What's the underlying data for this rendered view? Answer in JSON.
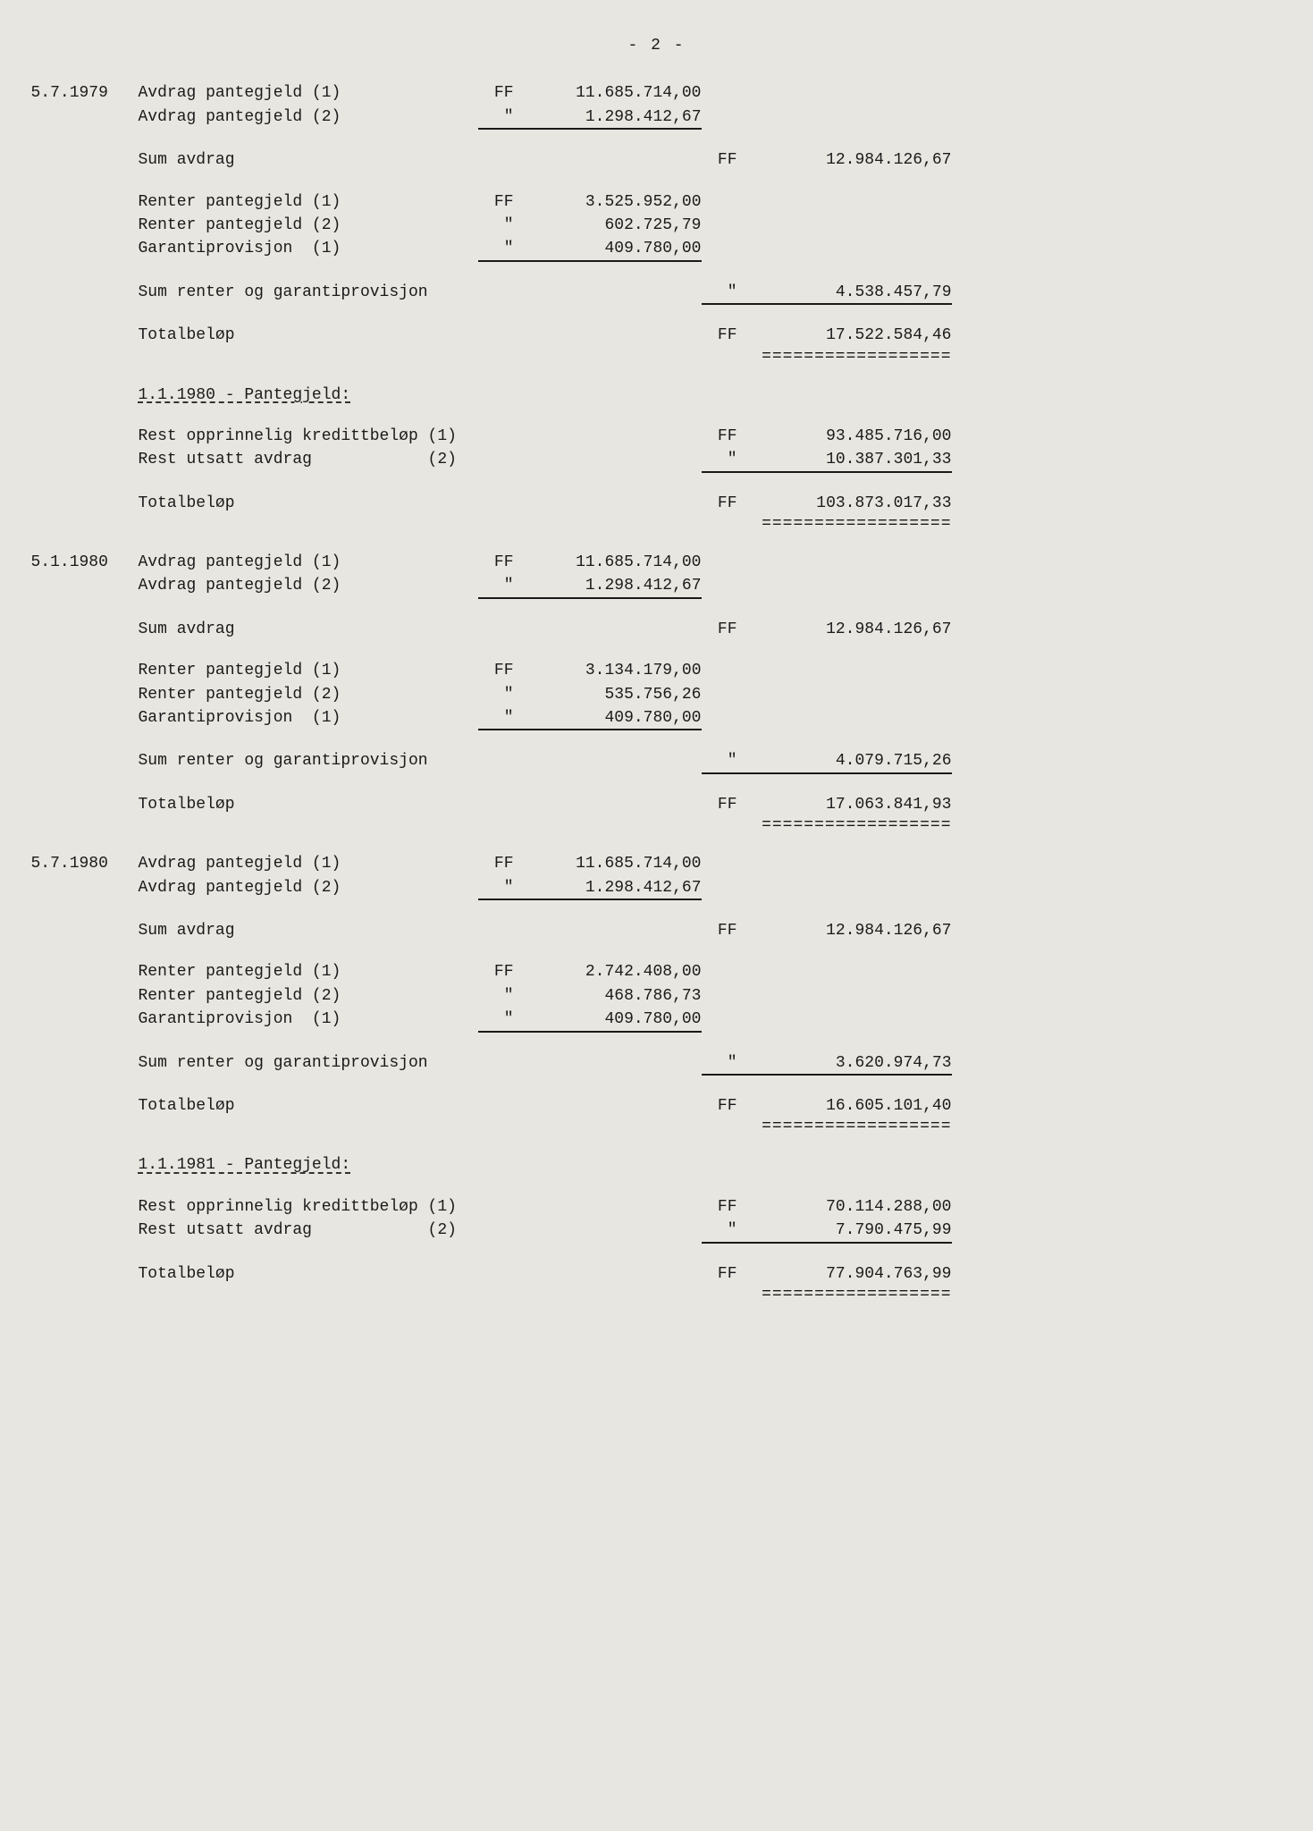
{
  "page_number": "- 2 -",
  "background_color": "#e8e6e0",
  "text_color": "#1a1a1a",
  "font_family": "Courier New",
  "font_size": 18,
  "sections": [
    {
      "date": "5.7.1979",
      "rows": [
        {
          "label": "Avdrag pantegjeld (1)",
          "cur1": "FF",
          "amt1": "11.685.714,00"
        },
        {
          "label": "Avdrag pantegjeld (2)",
          "cur1": "\"",
          "amt1": "1.298.412,67",
          "underline1": true
        }
      ],
      "sum_avdrag": {
        "label": "Sum avdrag",
        "cur2": "FF",
        "amt2": "12.984.126,67"
      },
      "renter": [
        {
          "label": "Renter pantegjeld (1)",
          "cur1": "FF",
          "amt1": "3.525.952,00"
        },
        {
          "label": "Renter pantegjeld (2)",
          "cur1": "\"",
          "amt1": "602.725,79"
        },
        {
          "label": "Garantiprovisjon  (1)",
          "cur1": "\"",
          "amt1": "409.780,00",
          "underline1": true
        }
      ],
      "sum_renter": {
        "label": "Sum renter og garantiprovisjon",
        "cur2": "\"",
        "amt2": "4.538.457,79",
        "underline2": true
      },
      "total": {
        "label": "Totalbeløp",
        "cur2": "FF",
        "amt2": "17.522.584,46",
        "double2": true
      }
    },
    {
      "heading": "1.1.1980 - Pantegjeld:",
      "rows": [
        {
          "label": "Rest opprinnelig kredittbeløp (1)",
          "cur2": "FF",
          "amt2": "93.485.716,00"
        },
        {
          "label": "Rest utsatt avdrag            (2)",
          "cur2": "\"",
          "amt2": "10.387.301,33",
          "underline2": true
        }
      ],
      "total": {
        "label": "Totalbeløp",
        "cur2": "FF",
        "amt2": "103.873.017,33",
        "double2": true
      }
    },
    {
      "date": "5.1.1980",
      "rows": [
        {
          "label": "Avdrag pantegjeld (1)",
          "cur1": "FF",
          "amt1": "11.685.714,00"
        },
        {
          "label": "Avdrag pantegjeld (2)",
          "cur1": "\"",
          "amt1": "1.298.412,67",
          "underline1": true
        }
      ],
      "sum_avdrag": {
        "label": "Sum avdrag",
        "cur2": "FF",
        "amt2": "12.984.126,67"
      },
      "renter": [
        {
          "label": "Renter pantegjeld (1)",
          "cur1": "FF",
          "amt1": "3.134.179,00"
        },
        {
          "label": "Renter pantegjeld (2)",
          "cur1": "\"",
          "amt1": "535.756,26"
        },
        {
          "label": "Garantiprovisjon  (1)",
          "cur1": "\"",
          "amt1": "409.780,00",
          "underline1": true
        }
      ],
      "sum_renter": {
        "label": "Sum renter og garantiprovisjon",
        "cur2": "\"",
        "amt2": "4.079.715,26",
        "underline2": true
      },
      "total": {
        "label": "Totalbeløp",
        "cur2": "FF",
        "amt2": "17.063.841,93",
        "double2": true
      }
    },
    {
      "date": "5.7.1980",
      "rows": [
        {
          "label": "Avdrag pantegjeld (1)",
          "cur1": "FF",
          "amt1": "11.685.714,00"
        },
        {
          "label": "Avdrag pantegjeld (2)",
          "cur1": "\"",
          "amt1": "1.298.412,67",
          "underline1": true
        }
      ],
      "sum_avdrag": {
        "label": "Sum avdrag",
        "cur2": "FF",
        "amt2": "12.984.126,67"
      },
      "renter": [
        {
          "label": "Renter pantegjeld (1)",
          "cur1": "FF",
          "amt1": "2.742.408,00"
        },
        {
          "label": "Renter pantegjeld (2)",
          "cur1": "\"",
          "amt1": "468.786,73"
        },
        {
          "label": "Garantiprovisjon  (1)",
          "cur1": "\"",
          "amt1": "409.780,00",
          "underline1": true
        }
      ],
      "sum_renter": {
        "label": "Sum renter og garantiprovisjon",
        "cur2": "\"",
        "amt2": "3.620.974,73",
        "underline2": true
      },
      "total": {
        "label": "Totalbeløp",
        "cur2": "FF",
        "amt2": "16.605.101,40",
        "double2": true
      }
    },
    {
      "heading": "1.1.1981 - Pantegjeld:",
      "rows": [
        {
          "label": "Rest opprinnelig kredittbeløp (1)",
          "cur2": "FF",
          "amt2": "70.114.288,00"
        },
        {
          "label": "Rest utsatt avdrag            (2)",
          "cur2": "\"",
          "amt2": "7.790.475,99",
          "underline2": true
        }
      ],
      "total": {
        "label": "Totalbeløp",
        "cur2": "FF",
        "amt2": "77.904.763,99",
        "double2": true
      }
    }
  ]
}
